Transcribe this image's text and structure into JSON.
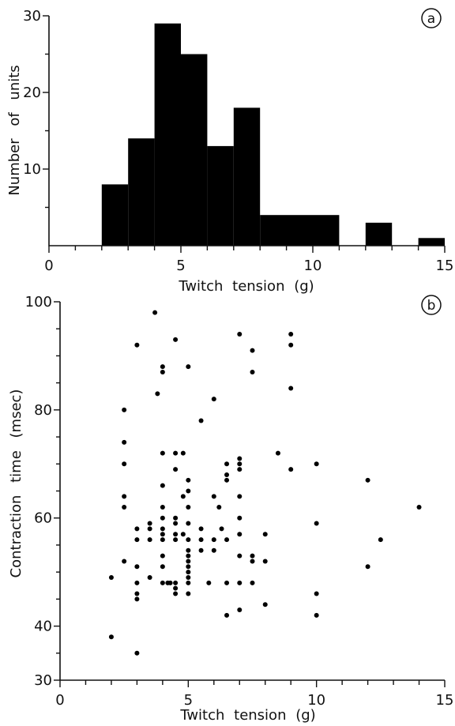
{
  "chart_data": [
    {
      "type": "bar",
      "panel_label": "a",
      "xlabel": "Twitch tension (g)",
      "ylabel": "Number of units",
      "xlim": [
        0,
        15
      ],
      "ylim": [
        0,
        30
      ],
      "x_ticks": [
        "0",
        "5",
        "10",
        "15"
      ],
      "y_ticks": [
        "10",
        "20",
        "30"
      ],
      "color": "#000000",
      "bins": [
        {
          "x0": 2.0,
          "x1": 3.0,
          "count": 8
        },
        {
          "x0": 3.0,
          "x1": 4.0,
          "count": 14
        },
        {
          "x0": 4.0,
          "x1": 5.0,
          "count": 29
        },
        {
          "x0": 5.0,
          "x1": 6.0,
          "count": 25
        },
        {
          "x0": 6.0,
          "x1": 7.0,
          "count": 13
        },
        {
          "x0": 7.0,
          "x1": 8.0,
          "count": 18
        },
        {
          "x0": 8.0,
          "x1": 11.0,
          "count": 4
        },
        {
          "x0": 12.0,
          "x1": 13.0,
          "count": 3
        },
        {
          "x0": 14.0,
          "x1": 15.0,
          "count": 1
        }
      ]
    },
    {
      "type": "scatter",
      "panel_label": "b",
      "xlabel": "Twitch tension (g)",
      "ylabel": "Contraction time (msec)",
      "xlim": [
        0,
        15
      ],
      "ylim": [
        30,
        100
      ],
      "x_ticks": [
        "0",
        "5",
        "10",
        "15"
      ],
      "y_ticks": [
        "30",
        "40",
        "60",
        "80",
        "100"
      ],
      "color": "#000000",
      "points": [
        [
          2.0,
          49
        ],
        [
          2.0,
          38
        ],
        [
          2.5,
          80
        ],
        [
          2.5,
          74
        ],
        [
          2.5,
          70
        ],
        [
          2.5,
          64
        ],
        [
          2.5,
          62
        ],
        [
          2.5,
          52
        ],
        [
          3.0,
          92
        ],
        [
          3.0,
          58
        ],
        [
          3.0,
          56
        ],
        [
          3.0,
          51
        ],
        [
          3.0,
          48
        ],
        [
          3.0,
          46
        ],
        [
          3.0,
          45
        ],
        [
          3.0,
          35
        ],
        [
          3.5,
          59
        ],
        [
          3.5,
          58
        ],
        [
          3.5,
          56
        ],
        [
          3.5,
          49
        ],
        [
          3.7,
          98
        ],
        [
          3.8,
          83
        ],
        [
          4.0,
          88
        ],
        [
          4.0,
          87
        ],
        [
          4.0,
          72
        ],
        [
          4.0,
          66
        ],
        [
          4.0,
          62
        ],
        [
          4.0,
          60
        ],
        [
          4.0,
          58
        ],
        [
          4.0,
          57
        ],
        [
          4.0,
          56
        ],
        [
          4.0,
          53
        ],
        [
          4.0,
          51
        ],
        [
          4.0,
          48
        ],
        [
          4.2,
          48
        ],
        [
          4.3,
          48
        ],
        [
          4.5,
          93
        ],
        [
          4.5,
          72
        ],
        [
          4.5,
          69
        ],
        [
          4.5,
          60
        ],
        [
          4.5,
          59
        ],
        [
          4.5,
          57
        ],
        [
          4.5,
          56
        ],
        [
          4.5,
          48
        ],
        [
          4.5,
          47
        ],
        [
          4.5,
          46
        ],
        [
          4.8,
          72
        ],
        [
          4.8,
          64
        ],
        [
          4.8,
          57
        ],
        [
          5.0,
          88
        ],
        [
          5.0,
          67
        ],
        [
          5.0,
          65
        ],
        [
          5.0,
          62
        ],
        [
          5.0,
          59
        ],
        [
          5.0,
          56
        ],
        [
          5.0,
          54
        ],
        [
          5.0,
          53
        ],
        [
          5.0,
          52
        ],
        [
          5.0,
          51
        ],
        [
          5.0,
          50
        ],
        [
          5.0,
          49
        ],
        [
          5.0,
          48
        ],
        [
          5.0,
          46
        ],
        [
          5.5,
          78
        ],
        [
          5.5,
          58
        ],
        [
          5.5,
          56
        ],
        [
          5.5,
          54
        ],
        [
          5.8,
          48
        ],
        [
          6.0,
          82
        ],
        [
          6.0,
          64
        ],
        [
          6.0,
          56
        ],
        [
          6.0,
          54
        ],
        [
          6.2,
          62
        ],
        [
          6.3,
          58
        ],
        [
          6.5,
          70
        ],
        [
          6.5,
          68
        ],
        [
          6.5,
          67
        ],
        [
          6.5,
          56
        ],
        [
          6.5,
          48
        ],
        [
          6.5,
          42
        ],
        [
          7.0,
          94
        ],
        [
          7.0,
          71
        ],
        [
          7.0,
          70
        ],
        [
          7.0,
          69
        ],
        [
          7.0,
          64
        ],
        [
          7.0,
          60
        ],
        [
          7.0,
          57
        ],
        [
          7.0,
          53
        ],
        [
          7.0,
          48
        ],
        [
          7.0,
          43
        ],
        [
          7.5,
          91
        ],
        [
          7.5,
          87
        ],
        [
          7.5,
          53
        ],
        [
          7.5,
          52
        ],
        [
          7.5,
          48
        ],
        [
          8.0,
          57
        ],
        [
          8.0,
          52
        ],
        [
          8.0,
          44
        ],
        [
          8.5,
          72
        ],
        [
          9.0,
          94
        ],
        [
          9.0,
          92
        ],
        [
          9.0,
          84
        ],
        [
          9.0,
          69
        ],
        [
          10.0,
          70
        ],
        [
          10.0,
          59
        ],
        [
          10.0,
          46
        ],
        [
          10.0,
          42
        ],
        [
          12.0,
          67
        ],
        [
          12.0,
          51
        ],
        [
          12.5,
          56
        ],
        [
          14.0,
          62
        ]
      ]
    }
  ]
}
